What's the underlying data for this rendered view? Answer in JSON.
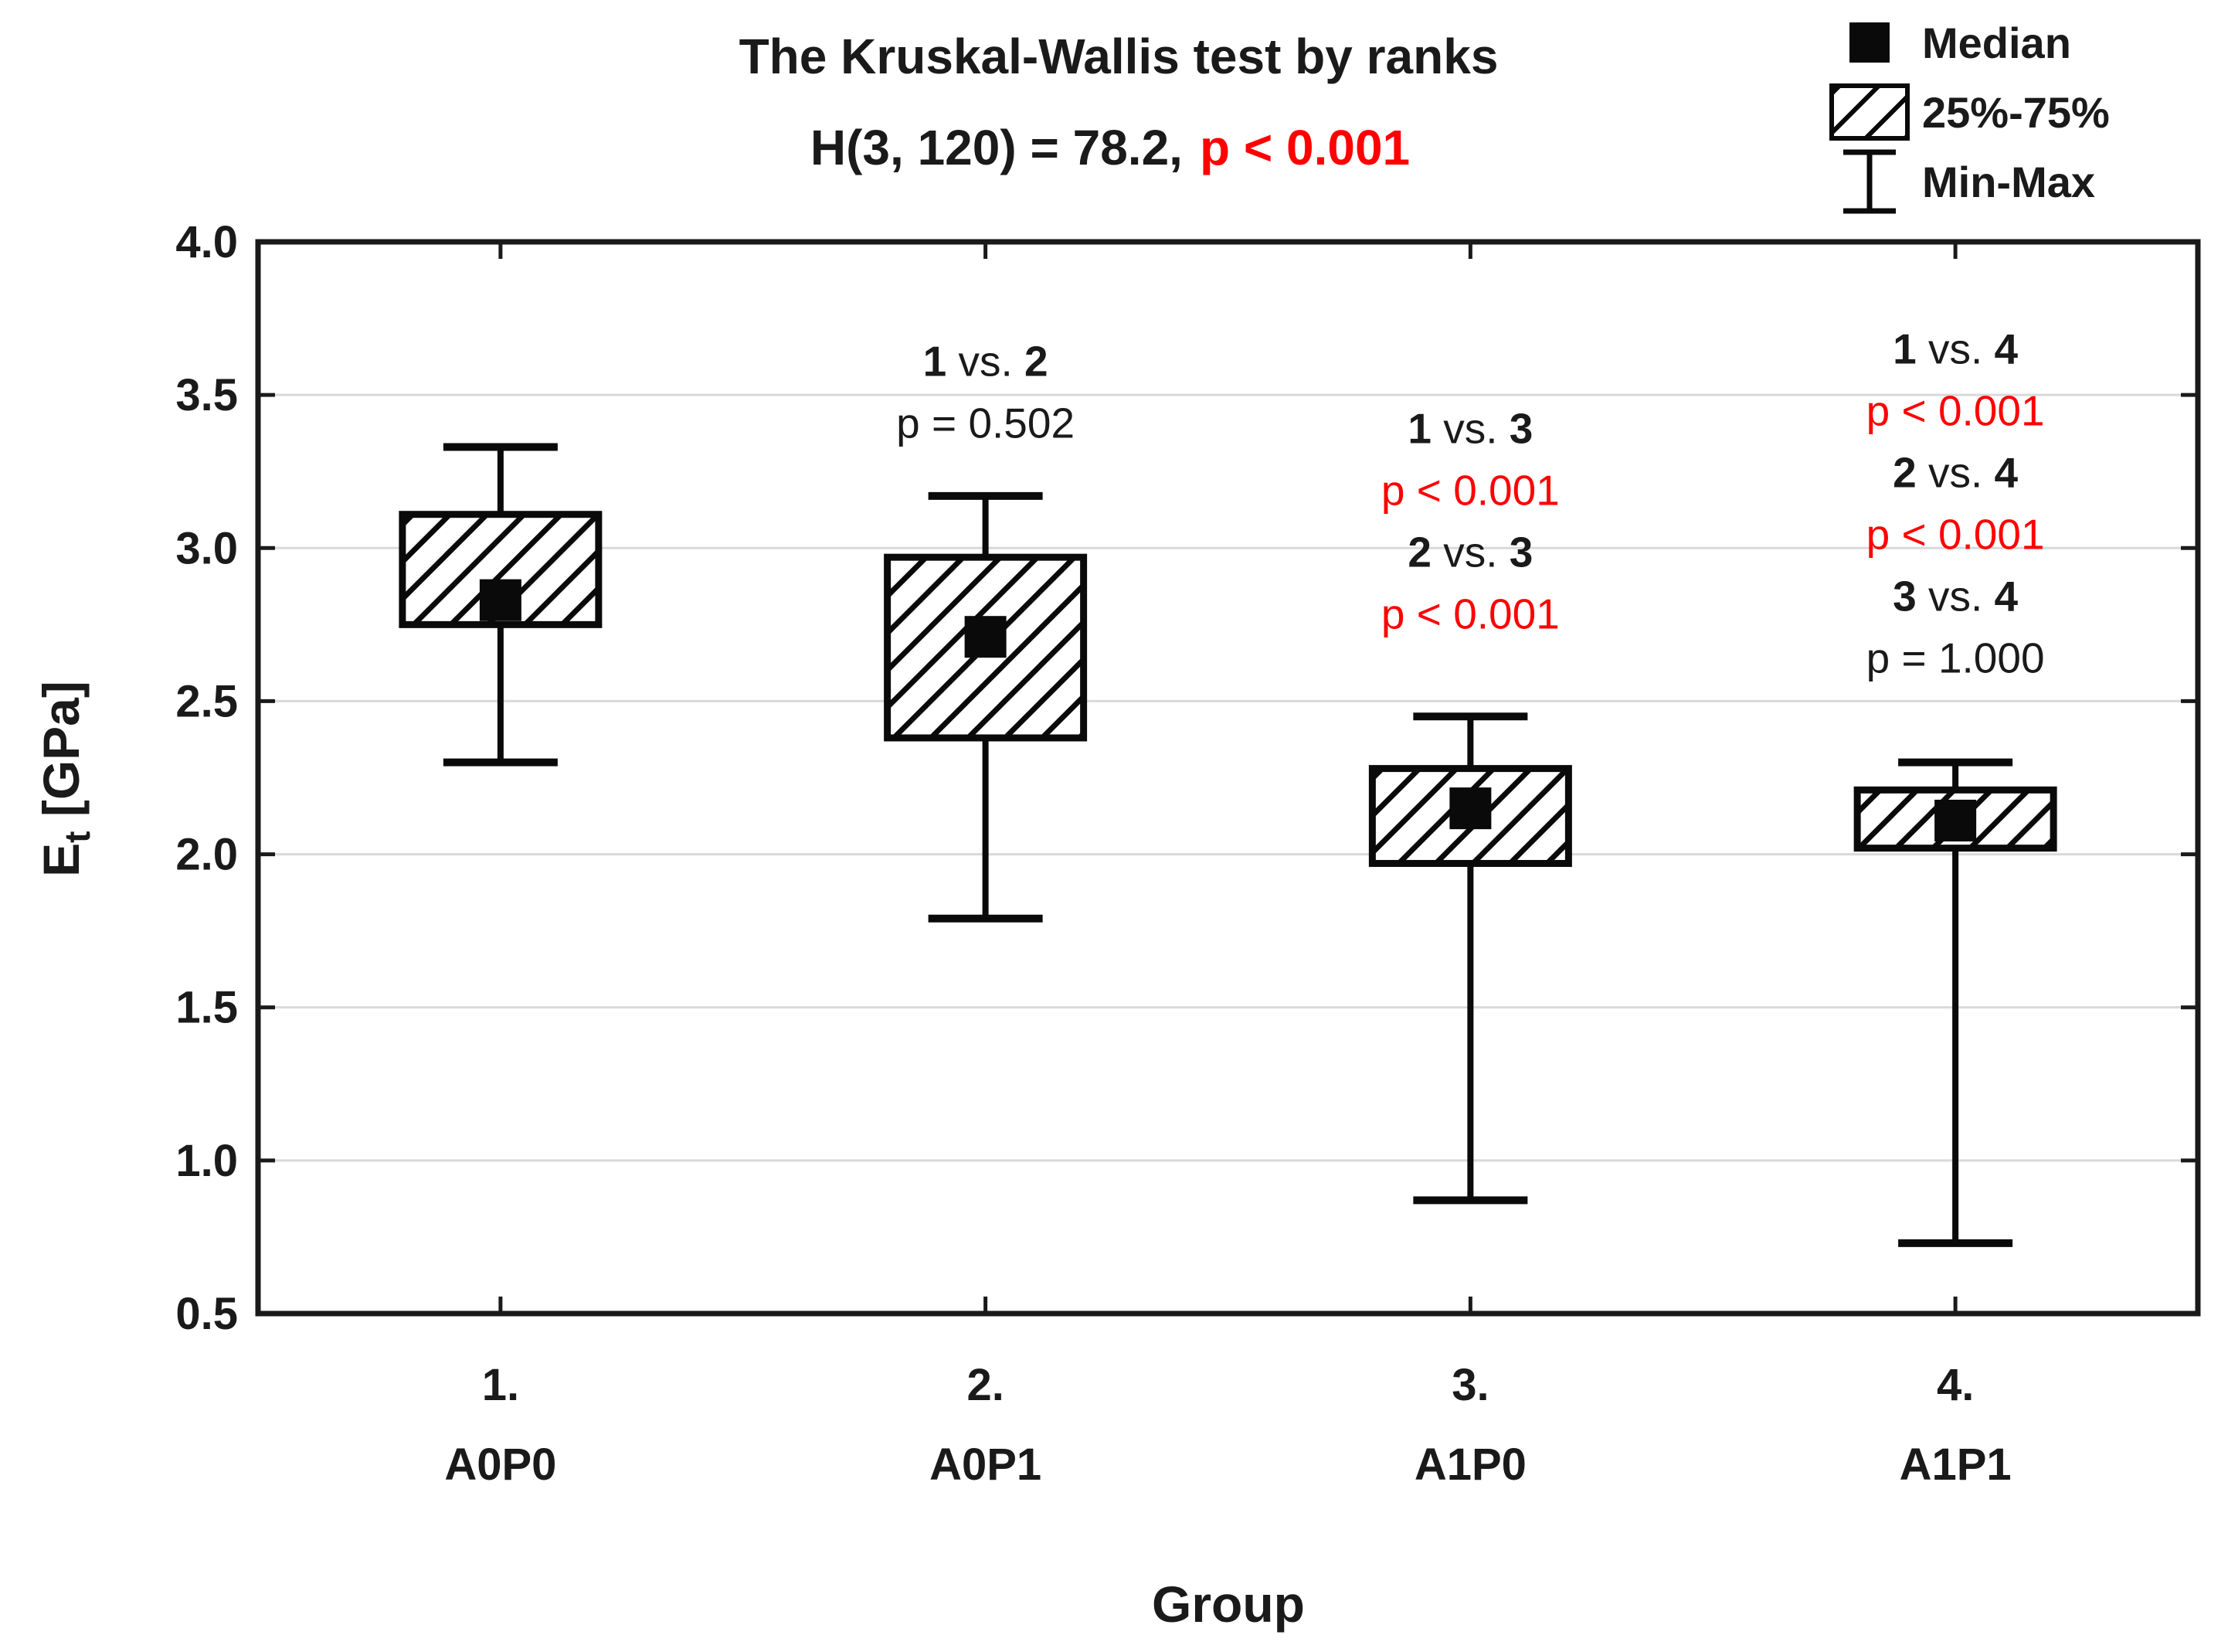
{
  "header": {
    "title": "The Kruskal-Wallis test by ranks",
    "stat_prefix": "H(3, 120) = 78.2,",
    "stat_p": "p < 0.001"
  },
  "legend": {
    "items": [
      {
        "icon": "median-square-icon",
        "label": "Median"
      },
      {
        "icon": "iqr-hatched-box-icon",
        "label": "25%-75%"
      },
      {
        "icon": "min-max-whisker-icon",
        "label": "Min-Max"
      }
    ]
  },
  "axes": {
    "y_label_main": "E",
    "y_label_sub": "t",
    "y_label_unit": " [GPa]",
    "x_label": "Group"
  },
  "chart_data": {
    "type": "box",
    "title": "The Kruskal-Wallis test by ranks, H(3, 120) = 78.2, p < 0.001",
    "xlabel": "Group",
    "ylabel": "Et [GPa]",
    "ylim": [
      0.5,
      4.0
    ],
    "grid": "horizontal",
    "legend_position": "top-right",
    "yticks": [
      {
        "value": 4.0,
        "label": "4.0"
      },
      {
        "value": 3.5,
        "label": "3.5"
      },
      {
        "value": 3.0,
        "label": "3.0"
      },
      {
        "value": 2.5,
        "label": "2.5"
      },
      {
        "value": 2.0,
        "label": "2.0"
      },
      {
        "value": 1.5,
        "label": "1.5"
      },
      {
        "value": 1.0,
        "label": "1.0"
      },
      {
        "value": 0.5,
        "label": "0.5"
      }
    ],
    "categories": [
      {
        "index_label": "1.",
        "code": "A0P0"
      },
      {
        "index_label": "2.",
        "code": "A0P1"
      },
      {
        "index_label": "3.",
        "code": "A1P0"
      },
      {
        "index_label": "4.",
        "code": "A1P1"
      }
    ],
    "boxes": [
      {
        "group": 1,
        "min": 2.3,
        "q1": 2.75,
        "median": 2.83,
        "q3": 3.11,
        "max": 3.33
      },
      {
        "group": 2,
        "min": 1.79,
        "q1": 2.38,
        "median": 2.71,
        "q3": 2.97,
        "max": 3.17
      },
      {
        "group": 3,
        "min": 0.87,
        "q1": 1.97,
        "median": 2.15,
        "q3": 2.28,
        "max": 2.45
      },
      {
        "group": 4,
        "min": 0.73,
        "q1": 2.02,
        "median": 2.11,
        "q3": 2.21,
        "max": 2.3
      }
    ],
    "annotations": {
      "vs_separator": "vs.",
      "blocks": [
        {
          "group": 2,
          "start_value": 3.61,
          "lines": [
            {
              "type": "pair",
              "a": "1",
              "b": "2"
            },
            {
              "type": "p",
              "text": "p = 0.502",
              "significant": false
            }
          ]
        },
        {
          "group": 3,
          "start_value": 3.39,
          "lines": [
            {
              "type": "pair",
              "a": "1",
              "b": "3"
            },
            {
              "type": "p",
              "text": "p < 0.001",
              "significant": true
            },
            {
              "type": "pair",
              "a": "2",
              "b": "3"
            },
            {
              "type": "p",
              "text": "p < 0.001",
              "significant": true
            }
          ]
        },
        {
          "group": 4,
          "start_value": 3.65,
          "lines": [
            {
              "type": "pair",
              "a": "1",
              "b": "4"
            },
            {
              "type": "p",
              "text": "p < 0.001",
              "significant": true
            },
            {
              "type": "pair",
              "a": "2",
              "b": "4"
            },
            {
              "type": "p",
              "text": "p < 0.001",
              "significant": true
            },
            {
              "type": "pair",
              "a": "3",
              "b": "4"
            },
            {
              "type": "p",
              "text": "p = 1.000",
              "significant": false
            }
          ]
        }
      ]
    },
    "colors": {
      "text": "#1a1a1a",
      "significant_p": "#ff0000",
      "gridline": "#d9d9d9",
      "box_stroke": "#0a0a0a",
      "frame": "#1a1a1a"
    }
  }
}
